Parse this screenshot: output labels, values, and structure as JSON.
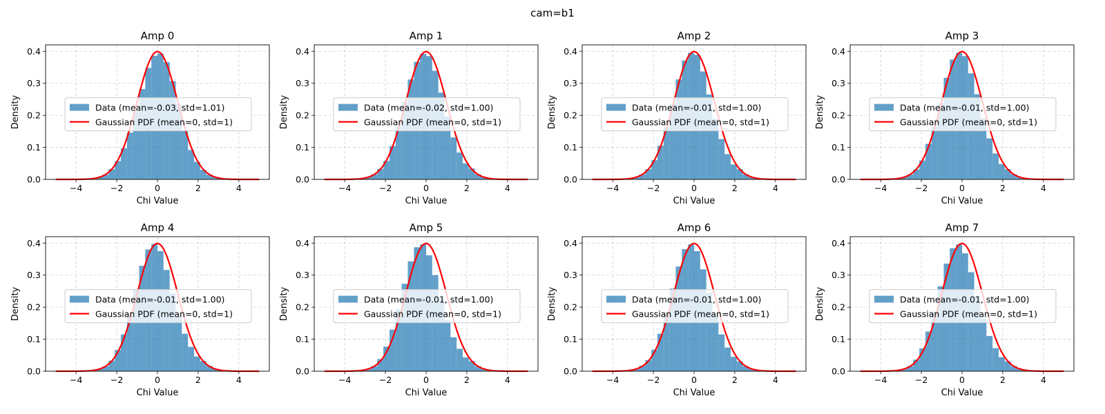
{
  "figure": {
    "suptitle": "cam=b1"
  },
  "colors": {
    "bar": "#1f77b4",
    "pdf_line": "#ff0000",
    "grid": "#b0b0b0"
  },
  "legend_pdf_label": "Gaussian PDF (mean=0, std=1)",
  "chart_data": [
    {
      "type": "bar",
      "title": "Amp 0",
      "xlabel": "Chi Value",
      "ylabel": "Density",
      "xlim": [
        -5.5,
        5.5
      ],
      "ylim": [
        0,
        0.42
      ],
      "xticks": [
        -4,
        -2,
        0,
        2,
        4
      ],
      "yticks": [
        0.0,
        0.1,
        0.2,
        0.3,
        0.4
      ],
      "grid": true,
      "legend_position": "center",
      "bin_width": 0.3,
      "hist_x": [
        -3.45,
        -3.15,
        -2.85,
        -2.55,
        -2.25,
        -1.95,
        -1.65,
        -1.35,
        -1.05,
        -0.75,
        -0.45,
        -0.15,
        0.15,
        0.45,
        0.75,
        1.05,
        1.35,
        1.65,
        1.95,
        2.25,
        2.55,
        2.85,
        3.15,
        3.45
      ],
      "hist_density": [
        0.002,
        0.004,
        0.008,
        0.015,
        0.032,
        0.057,
        0.097,
        0.146,
        0.212,
        0.282,
        0.348,
        0.386,
        0.393,
        0.366,
        0.307,
        0.236,
        0.152,
        0.092,
        0.055,
        0.03,
        0.015,
        0.008,
        0.003,
        0.001
      ],
      "series": [
        {
          "name": "Data (mean=-0.03, std=1.01)",
          "kind": "histogram"
        },
        {
          "name": "Gaussian PDF (mean=0, std=1)",
          "kind": "line",
          "mean": 0,
          "std": 1,
          "x_range": [
            -5,
            5
          ]
        }
      ]
    },
    {
      "type": "bar",
      "title": "Amp 1",
      "xlabel": "Chi Value",
      "ylabel": "Density",
      "xlim": [
        -5.5,
        5.5
      ],
      "ylim": [
        0,
        0.42
      ],
      "xticks": [
        -4,
        -2,
        0,
        2,
        4
      ],
      "yticks": [
        0.0,
        0.1,
        0.2,
        0.3,
        0.4
      ],
      "grid": true,
      "legend_position": "center",
      "bin_width": 0.3,
      "hist_x": [
        -3.45,
        -3.15,
        -2.85,
        -2.55,
        -2.25,
        -1.95,
        -1.65,
        -1.35,
        -1.05,
        -0.75,
        -0.45,
        -0.15,
        0.15,
        0.45,
        0.75,
        1.05,
        1.35,
        1.65,
        1.95,
        2.25,
        2.55,
        2.85,
        3.15,
        3.45
      ],
      "hist_density": [
        0.001,
        0.003,
        0.007,
        0.016,
        0.033,
        0.058,
        0.104,
        0.166,
        0.241,
        0.312,
        0.367,
        0.392,
        0.385,
        0.339,
        0.271,
        0.196,
        0.131,
        0.084,
        0.05,
        0.034,
        0.016,
        0.008,
        0.003,
        0.001
      ],
      "series": [
        {
          "name": "Data (mean=-0.02, std=1.00)",
          "kind": "histogram"
        },
        {
          "name": "Gaussian PDF (mean=0, std=1)",
          "kind": "line",
          "mean": 0,
          "std": 1,
          "x_range": [
            -5,
            5
          ]
        }
      ]
    },
    {
      "type": "bar",
      "title": "Amp 2",
      "xlabel": "Chi Value",
      "ylabel": "Density",
      "xlim": [
        -5.5,
        5.5
      ],
      "ylim": [
        0,
        0.42
      ],
      "xticks": [
        -4,
        -2,
        0,
        2,
        4
      ],
      "yticks": [
        0.0,
        0.1,
        0.2,
        0.3,
        0.4
      ],
      "grid": true,
      "legend_position": "center",
      "bin_width": 0.3,
      "hist_x": [
        -3.45,
        -3.15,
        -2.85,
        -2.55,
        -2.25,
        -1.95,
        -1.65,
        -1.35,
        -1.05,
        -0.75,
        -0.45,
        -0.15,
        0.15,
        0.45,
        0.75,
        1.05,
        1.35,
        1.65,
        1.95,
        2.25,
        2.55,
        2.85,
        3.15,
        3.45
      ],
      "hist_density": [
        0.001,
        0.003,
        0.007,
        0.016,
        0.032,
        0.06,
        0.105,
        0.163,
        0.236,
        0.312,
        0.371,
        0.395,
        0.389,
        0.337,
        0.265,
        0.189,
        0.126,
        0.079,
        0.047,
        0.032,
        0.016,
        0.007,
        0.003,
        0.001
      ],
      "series": [
        {
          "name": "Data (mean=-0.01, std=1.00)",
          "kind": "histogram"
        },
        {
          "name": "Gaussian PDF (mean=0, std=1)",
          "kind": "line",
          "mean": 0,
          "std": 1,
          "x_range": [
            -5,
            5
          ]
        }
      ]
    },
    {
      "type": "bar",
      "title": "Amp 3",
      "xlabel": "Chi Value",
      "ylabel": "Density",
      "xlim": [
        -5.5,
        5.5
      ],
      "ylim": [
        0,
        0.42
      ],
      "xticks": [
        -4,
        -2,
        0,
        2,
        4
      ],
      "yticks": [
        0.0,
        0.1,
        0.2,
        0.3,
        0.4
      ],
      "grid": true,
      "legend_position": "center",
      "bin_width": 0.3,
      "hist_x": [
        -3.45,
        -3.15,
        -2.85,
        -2.55,
        -2.25,
        -1.95,
        -1.65,
        -1.35,
        -1.05,
        -0.75,
        -0.45,
        -0.15,
        0.15,
        0.45,
        0.75,
        1.05,
        1.35,
        1.65,
        1.95,
        2.25,
        2.55,
        2.85,
        3.15,
        3.45
      ],
      "hist_density": [
        0.001,
        0.003,
        0.007,
        0.015,
        0.031,
        0.059,
        0.111,
        0.165,
        0.238,
        0.317,
        0.374,
        0.395,
        0.385,
        0.331,
        0.266,
        0.191,
        0.128,
        0.081,
        0.048,
        0.032,
        0.016,
        0.007,
        0.003,
        0.001
      ],
      "series": [
        {
          "name": "Data (mean=-0.01, std=1.00)",
          "kind": "histogram"
        },
        {
          "name": "Gaussian PDF (mean=0, std=1)",
          "kind": "line",
          "mean": 0,
          "std": 1,
          "x_range": [
            -5,
            5
          ]
        }
      ]
    },
    {
      "type": "bar",
      "title": "Amp 4",
      "xlabel": "Chi Value",
      "ylabel": "Density",
      "xlim": [
        -5.5,
        5.5
      ],
      "ylim": [
        0,
        0.42
      ],
      "xticks": [
        -4,
        -2,
        0,
        2,
        4
      ],
      "yticks": [
        0.0,
        0.1,
        0.2,
        0.3,
        0.4
      ],
      "grid": true,
      "legend_position": "center",
      "bin_width": 0.3,
      "hist_x": [
        -3.45,
        -3.15,
        -2.85,
        -2.55,
        -2.25,
        -1.95,
        -1.65,
        -1.35,
        -1.05,
        -0.75,
        -0.45,
        -0.15,
        0.15,
        0.45,
        0.75,
        1.05,
        1.35,
        1.65,
        1.95,
        2.25,
        2.55,
        2.85,
        3.15,
        3.45
      ],
      "hist_density": [
        0.001,
        0.003,
        0.007,
        0.015,
        0.033,
        0.066,
        0.115,
        0.174,
        0.256,
        0.329,
        0.38,
        0.397,
        0.375,
        0.316,
        0.243,
        0.173,
        0.117,
        0.076,
        0.046,
        0.032,
        0.017,
        0.008,
        0.003,
        0.001
      ],
      "series": [
        {
          "name": "Data (mean=-0.01, std=1.00)",
          "kind": "histogram"
        },
        {
          "name": "Gaussian PDF (mean=0, std=1)",
          "kind": "line",
          "mean": 0,
          "std": 1,
          "x_range": [
            -5,
            5
          ]
        }
      ]
    },
    {
      "type": "bar",
      "title": "Amp 5",
      "xlabel": "Chi Value",
      "ylabel": "Density",
      "xlim": [
        -5.5,
        5.5
      ],
      "ylim": [
        0,
        0.42
      ],
      "xticks": [
        -4,
        -2,
        0,
        2,
        4
      ],
      "yticks": [
        0.0,
        0.1,
        0.2,
        0.3,
        0.4
      ],
      "grid": true,
      "legend_position": "center",
      "bin_width": 0.3,
      "hist_x": [
        -3.45,
        -3.15,
        -2.85,
        -2.55,
        -2.25,
        -1.95,
        -1.65,
        -1.35,
        -1.05,
        -0.75,
        -0.45,
        -0.15,
        0.15,
        0.45,
        0.75,
        1.05,
        1.35,
        1.65,
        1.95,
        2.25,
        2.55,
        2.85,
        3.15,
        3.45
      ],
      "hist_density": [
        0.001,
        0.003,
        0.007,
        0.016,
        0.038,
        0.077,
        0.13,
        0.194,
        0.273,
        0.343,
        0.387,
        0.396,
        0.362,
        0.3,
        0.227,
        0.159,
        0.106,
        0.07,
        0.043,
        0.032,
        0.016,
        0.007,
        0.003,
        0.001
      ],
      "series": [
        {
          "name": "Data (mean=-0.01, std=1.00)",
          "kind": "histogram"
        },
        {
          "name": "Gaussian PDF (mean=0, std=1)",
          "kind": "line",
          "mean": 0,
          "std": 1,
          "x_range": [
            -5,
            5
          ]
        }
      ]
    },
    {
      "type": "bar",
      "title": "Amp 6",
      "xlabel": "Chi Value",
      "ylabel": "Density",
      "xlim": [
        -5.5,
        5.5
      ],
      "ylim": [
        0,
        0.42
      ],
      "xticks": [
        -4,
        -2,
        0,
        2,
        4
      ],
      "yticks": [
        0.0,
        0.1,
        0.2,
        0.3,
        0.4
      ],
      "grid": true,
      "legend_position": "center",
      "bin_width": 0.3,
      "hist_x": [
        -3.45,
        -3.15,
        -2.85,
        -2.55,
        -2.25,
        -1.95,
        -1.65,
        -1.35,
        -1.05,
        -0.75,
        -0.45,
        -0.15,
        0.15,
        0.45,
        0.75,
        1.05,
        1.35,
        1.65,
        1.95,
        2.25,
        2.55,
        2.85,
        3.15,
        3.45
      ],
      "hist_density": [
        0.001,
        0.003,
        0.007,
        0.017,
        0.035,
        0.067,
        0.117,
        0.178,
        0.258,
        0.327,
        0.381,
        0.396,
        0.375,
        0.318,
        0.245,
        0.174,
        0.115,
        0.074,
        0.045,
        0.031,
        0.016,
        0.007,
        0.003,
        0.001
      ],
      "series": [
        {
          "name": "Data (mean=-0.01, std=1.00)",
          "kind": "histogram"
        },
        {
          "name": "Gaussian PDF (mean=0, std=1)",
          "kind": "line",
          "mean": 0,
          "std": 1,
          "x_range": [
            -5,
            5
          ]
        }
      ]
    },
    {
      "type": "bar",
      "title": "Amp 7",
      "xlabel": "Chi Value",
      "ylabel": "Density",
      "xlim": [
        -5.5,
        5.5
      ],
      "ylim": [
        0,
        0.42
      ],
      "xticks": [
        -4,
        -2,
        0,
        2,
        4
      ],
      "yticks": [
        0.0,
        0.1,
        0.2,
        0.3,
        0.4
      ],
      "grid": true,
      "legend_position": "center",
      "bin_width": 0.3,
      "hist_x": [
        -3.45,
        -3.15,
        -2.85,
        -2.55,
        -2.25,
        -1.95,
        -1.65,
        -1.35,
        -1.05,
        -0.75,
        -0.45,
        -0.15,
        0.15,
        0.45,
        0.75,
        1.05,
        1.35,
        1.65,
        1.95,
        2.25,
        2.55,
        2.85,
        3.15,
        3.45
      ],
      "hist_density": [
        0.001,
        0.003,
        0.007,
        0.016,
        0.036,
        0.071,
        0.124,
        0.186,
        0.265,
        0.336,
        0.384,
        0.396,
        0.368,
        0.309,
        0.235,
        0.165,
        0.11,
        0.072,
        0.044,
        0.031,
        0.016,
        0.007,
        0.003,
        0.001
      ],
      "series": [
        {
          "name": "Data (mean=-0.01, std=1.00)",
          "kind": "histogram"
        },
        {
          "name": "Gaussian PDF (mean=0, std=1)",
          "kind": "line",
          "mean": 0,
          "std": 1,
          "x_range": [
            -5,
            5
          ]
        }
      ]
    }
  ]
}
